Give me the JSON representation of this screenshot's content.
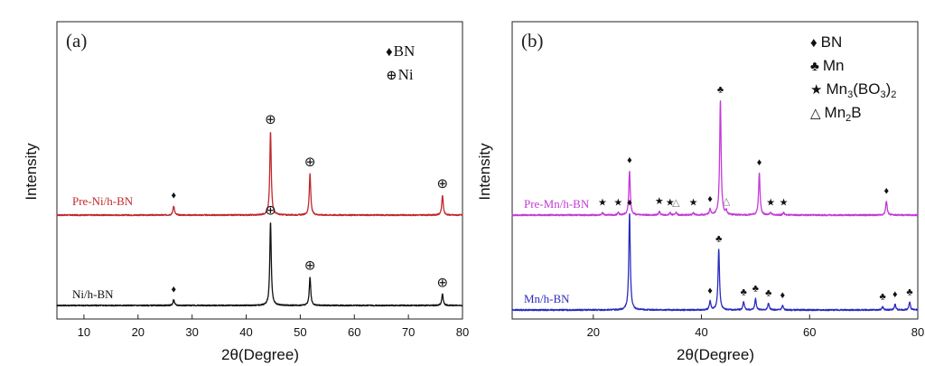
{
  "chart_data": [
    {
      "type": "line",
      "panel_label": "(a)",
      "xlabel": "2θ(Degree)",
      "ylabel": "Intensity",
      "xlim": [
        5,
        80
      ],
      "xticks": [
        10,
        20,
        30,
        40,
        50,
        60,
        70,
        80
      ],
      "legend": [
        {
          "symbol": "♦",
          "label": "BN"
        },
        {
          "symbol": "⊕",
          "label": "Ni"
        }
      ],
      "series": [
        {
          "name": "Pre-Ni/h-BN",
          "color": "#c0282d",
          "offset": 1.0,
          "peaks": [
            {
              "x": 26.6,
              "h": 0.09,
              "marker": "♦"
            },
            {
              "x": 44.5,
              "h": 0.81,
              "marker": "⊕"
            },
            {
              "x": 51.8,
              "h": 0.4,
              "marker": "⊕"
            },
            {
              "x": 76.3,
              "h": 0.19,
              "marker": "⊕"
            }
          ]
        },
        {
          "name": "Ni/h-BN",
          "color": "#111111",
          "offset": 0.0,
          "peaks": [
            {
              "x": 26.6,
              "h": 0.06,
              "marker": "♦"
            },
            {
              "x": 44.5,
              "h": 0.88,
              "marker": "⊕"
            },
            {
              "x": 51.8,
              "h": 0.3,
              "marker": "⊕"
            },
            {
              "x": 76.3,
              "h": 0.12,
              "marker": "⊕"
            }
          ]
        }
      ]
    },
    {
      "type": "line",
      "panel_label": "(b)",
      "xlabel": "2θ(Degree)",
      "ylabel": "Intensity",
      "xlim": [
        5,
        80
      ],
      "xticks": [
        20,
        40,
        60,
        80
      ],
      "legend": [
        {
          "symbol": "♦",
          "label": "BN"
        },
        {
          "symbol": "♣",
          "label": "Mn"
        },
        {
          "symbol": "★",
          "label": "Mn3(BO3)2"
        },
        {
          "symbol": "△",
          "label": "Mn2B"
        }
      ],
      "series": [
        {
          "name": "Pre-Mn/h-BN",
          "color": "#c43ad8",
          "offset": 1.0,
          "peaks": [
            {
              "x": 26.7,
              "h": 0.38,
              "marker": "♦"
            },
            {
              "x": 43.5,
              "h": 0.98,
              "marker": "♣"
            },
            {
              "x": 50.7,
              "h": 0.36,
              "marker": "♦"
            },
            {
              "x": 74.2,
              "h": 0.12,
              "marker": "♦"
            },
            {
              "x": 41.6,
              "h": 0.05,
              "marker": "♦"
            },
            {
              "x": 44.6,
              "h": 0.03,
              "marker": "△"
            },
            {
              "x": 21.7,
              "h": 0.02,
              "marker": "★"
            },
            {
              "x": 24.6,
              "h": 0.02,
              "marker": "★"
            },
            {
              "x": 32.2,
              "h": 0.03,
              "marker": "★"
            },
            {
              "x": 34.2,
              "h": 0.02,
              "marker": "★"
            },
            {
              "x": 35.3,
              "h": 0.02,
              "marker": "△"
            },
            {
              "x": 38.5,
              "h": 0.02,
              "marker": "★"
            },
            {
              "x": 52.8,
              "h": 0.02,
              "marker": "★"
            },
            {
              "x": 55.2,
              "h": 0.02,
              "marker": "★"
            }
          ]
        },
        {
          "name": "Mn/h-BN",
          "color": "#2b2bbf",
          "offset": 0.0,
          "peaks": [
            {
              "x": 26.7,
              "h": 0.86,
              "marker": "♦"
            },
            {
              "x": 41.6,
              "h": 0.08,
              "marker": "♦"
            },
            {
              "x": 43.2,
              "h": 0.54,
              "marker": "♣"
            },
            {
              "x": 47.8,
              "h": 0.07,
              "marker": "♣"
            },
            {
              "x": 50.0,
              "h": 0.1,
              "marker": "♣"
            },
            {
              "x": 52.4,
              "h": 0.06,
              "marker": "♣"
            },
            {
              "x": 55.0,
              "h": 0.04,
              "marker": "♦"
            },
            {
              "x": 73.5,
              "h": 0.03,
              "marker": "♣"
            },
            {
              "x": 75.8,
              "h": 0.05,
              "marker": "♦"
            },
            {
              "x": 78.5,
              "h": 0.07,
              "marker": "♣"
            }
          ]
        }
      ]
    }
  ]
}
